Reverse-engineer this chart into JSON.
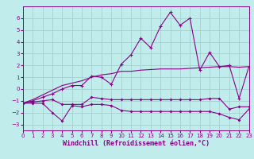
{
  "xlabel": "Windchill (Refroidissement éolien,°C)",
  "x": [
    0,
    1,
    2,
    3,
    4,
    5,
    6,
    7,
    8,
    9,
    10,
    11,
    12,
    13,
    14,
    15,
    16,
    17,
    18,
    19,
    20,
    21,
    22,
    23
  ],
  "line1": [
    -1.2,
    -1.1,
    -1.0,
    -0.9,
    -1.3,
    -1.3,
    -1.3,
    -0.7,
    -0.8,
    -0.9,
    -0.9,
    -0.9,
    -0.9,
    -0.9,
    -0.9,
    -0.9,
    -0.9,
    -0.9,
    -0.9,
    -0.8,
    -0.8,
    -1.7,
    -1.5,
    -1.5
  ],
  "line2": [
    -1.2,
    -1.2,
    -1.2,
    -2.0,
    -2.7,
    -1.4,
    -1.5,
    -1.3,
    -1.3,
    -1.4,
    -1.8,
    -1.9,
    -1.9,
    -1.9,
    -1.9,
    -1.9,
    -1.9,
    -1.9,
    -1.9,
    -1.9,
    -2.1,
    -2.4,
    -2.6,
    -1.7
  ],
  "line3": [
    -1.2,
    -1.0,
    -0.7,
    -0.4,
    0.0,
    0.3,
    0.3,
    1.1,
    1.0,
    0.4,
    2.1,
    2.9,
    4.3,
    3.5,
    5.3,
    6.5,
    5.4,
    6.0,
    1.6,
    3.1,
    1.9,
    2.0,
    -0.8,
    1.9
  ],
  "line4": [
    -1.2,
    -0.9,
    -0.5,
    -0.1,
    0.3,
    0.5,
    0.7,
    1.0,
    1.2,
    1.3,
    1.5,
    1.5,
    1.6,
    1.65,
    1.7,
    1.7,
    1.7,
    1.75,
    1.8,
    1.85,
    1.9,
    1.9,
    1.85,
    1.9
  ],
  "bg_color": "#c0ecec",
  "grid_color": "#a0cccc",
  "line_color": "#880088",
  "ylim": [
    -3.5,
    7.0
  ],
  "xlim": [
    0,
    23
  ],
  "yticks": [
    -3,
    -2,
    -1,
    0,
    1,
    2,
    3,
    4,
    5,
    6
  ],
  "xticks": [
    0,
    1,
    2,
    3,
    4,
    5,
    6,
    7,
    8,
    9,
    10,
    11,
    12,
    13,
    14,
    15,
    16,
    17,
    18,
    19,
    20,
    21,
    22,
    23
  ],
  "tick_fontsize": 5.0,
  "xlabel_fontsize": 6.0
}
